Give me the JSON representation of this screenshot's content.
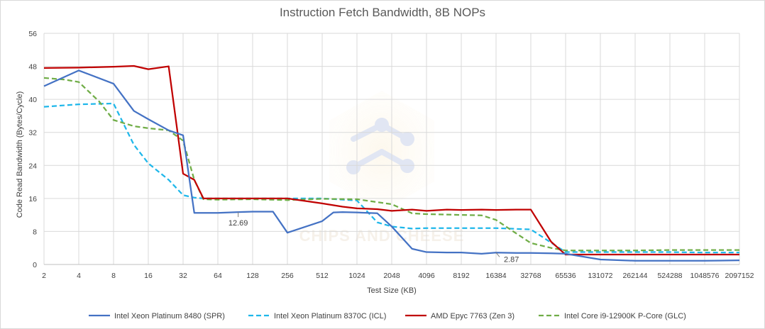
{
  "chart_data": {
    "type": "line",
    "title": "Instruction Fetch Bandwidth, 8B NOPs",
    "xlabel": "Test Size (KB)",
    "ylabel": "Code Read Bandwidth (Bytes/Cycle)",
    "ylim": [
      0,
      56
    ],
    "yticks": [
      0,
      8,
      16,
      24,
      32,
      40,
      48,
      56
    ],
    "x_scale": "log2",
    "xlim": [
      2,
      2097152
    ],
    "xticks": [
      "2",
      "4",
      "8",
      "16",
      "32",
      "64",
      "128",
      "256",
      "512",
      "1024",
      "2048",
      "4096",
      "8192",
      "16384",
      "32768",
      "65536",
      "131072",
      "262144",
      "524288",
      "1048576",
      "2097152"
    ],
    "grid": true,
    "legend_position": "bottom",
    "series": [
      {
        "name": "Intel Xeon Platinum 8480 (SPR)",
        "color": "#4472c4",
        "dash": "solid",
        "x": [
          2,
          4,
          8,
          12,
          16,
          24,
          32,
          40,
          48,
          64,
          96,
          128,
          192,
          256,
          512,
          640,
          768,
          1024,
          1536,
          2048,
          3072,
          4096,
          6144,
          8192,
          12288,
          16384,
          24576,
          32768,
          49152,
          65536,
          131072,
          262144,
          524288,
          1048576,
          2097152
        ],
        "values": [
          43.2,
          47.0,
          43.8,
          37.2,
          35.2,
          32.5,
          31.3,
          12.5,
          12.5,
          12.5,
          12.69,
          12.8,
          12.8,
          7.7,
          10.5,
          12.6,
          12.7,
          12.6,
          12.4,
          9.2,
          3.8,
          3.0,
          2.9,
          2.9,
          2.6,
          2.87,
          2.8,
          2.8,
          2.7,
          2.6,
          1.2,
          0.9,
          0.9,
          0.9,
          1.0
        ]
      },
      {
        "name": "Intel Xeon Platinum 8370C (ICL)",
        "color": "#1fb7ea",
        "dash": "dashed",
        "x": [
          2,
          4,
          8,
          12,
          16,
          24,
          32,
          40,
          48,
          64,
          128,
          256,
          512,
          1024,
          1536,
          2048,
          3072,
          4096,
          8192,
          16384,
          32768,
          65536,
          131072,
          262144,
          524288,
          1048576,
          2097152
        ],
        "values": [
          38.2,
          38.8,
          39.0,
          29.0,
          24.5,
          20.5,
          16.8,
          16.2,
          16.0,
          16.0,
          16.0,
          16.0,
          16.0,
          15.5,
          10.2,
          9.2,
          8.7,
          8.8,
          8.8,
          8.8,
          8.5,
          3.0,
          3.0,
          3.0,
          3.0,
          2.9,
          2.9
        ]
      },
      {
        "name": "AMD Epyc 7763 (Zen 3)",
        "color": "#c00000",
        "dash": "solid",
        "x": [
          2,
          4,
          8,
          12,
          16,
          24,
          32,
          40,
          48,
          64,
          128,
          256,
          512,
          768,
          1024,
          1536,
          2048,
          3072,
          4096,
          6144,
          8192,
          12288,
          16384,
          24576,
          32768,
          49152,
          65536,
          131072,
          262144,
          524288,
          1048576,
          2097152
        ],
        "values": [
          47.6,
          47.7,
          47.9,
          48.1,
          47.3,
          48.0,
          22.0,
          20.5,
          16.0,
          16.0,
          16.0,
          16.0,
          14.8,
          14.0,
          13.6,
          13.4,
          13.0,
          13.3,
          13.0,
          13.3,
          13.2,
          13.3,
          13.2,
          13.3,
          13.3,
          5.5,
          2.4,
          2.4,
          2.4,
          2.4,
          2.4,
          2.4
        ]
      },
      {
        "name": "Intel Core i9-12900K P-Core (GLC)",
        "color": "#70ad47",
        "dash": "dashed",
        "x": [
          2,
          3,
          4,
          6,
          8,
          12,
          16,
          24,
          32,
          40,
          48,
          64,
          128,
          256,
          512,
          1024,
          2048,
          3072,
          4096,
          8192,
          12288,
          16384,
          24576,
          32768,
          49152,
          65536,
          131072,
          262144,
          524288,
          1048576,
          2097152
        ],
        "values": [
          45.2,
          44.8,
          44.2,
          39.5,
          35.0,
          33.5,
          33.0,
          32.5,
          30.0,
          20.5,
          15.8,
          15.7,
          15.8,
          15.6,
          15.9,
          15.8,
          14.6,
          12.4,
          12.2,
          12.0,
          11.9,
          10.8,
          7.5,
          5.2,
          4.0,
          3.4,
          3.4,
          3.4,
          3.5,
          3.5,
          3.5
        ]
      }
    ],
    "annotations": [
      {
        "text": "12.69",
        "x": 96,
        "y": 12.69
      },
      {
        "text": "2.87",
        "x": 16384,
        "y": 2.87
      }
    ]
  }
}
